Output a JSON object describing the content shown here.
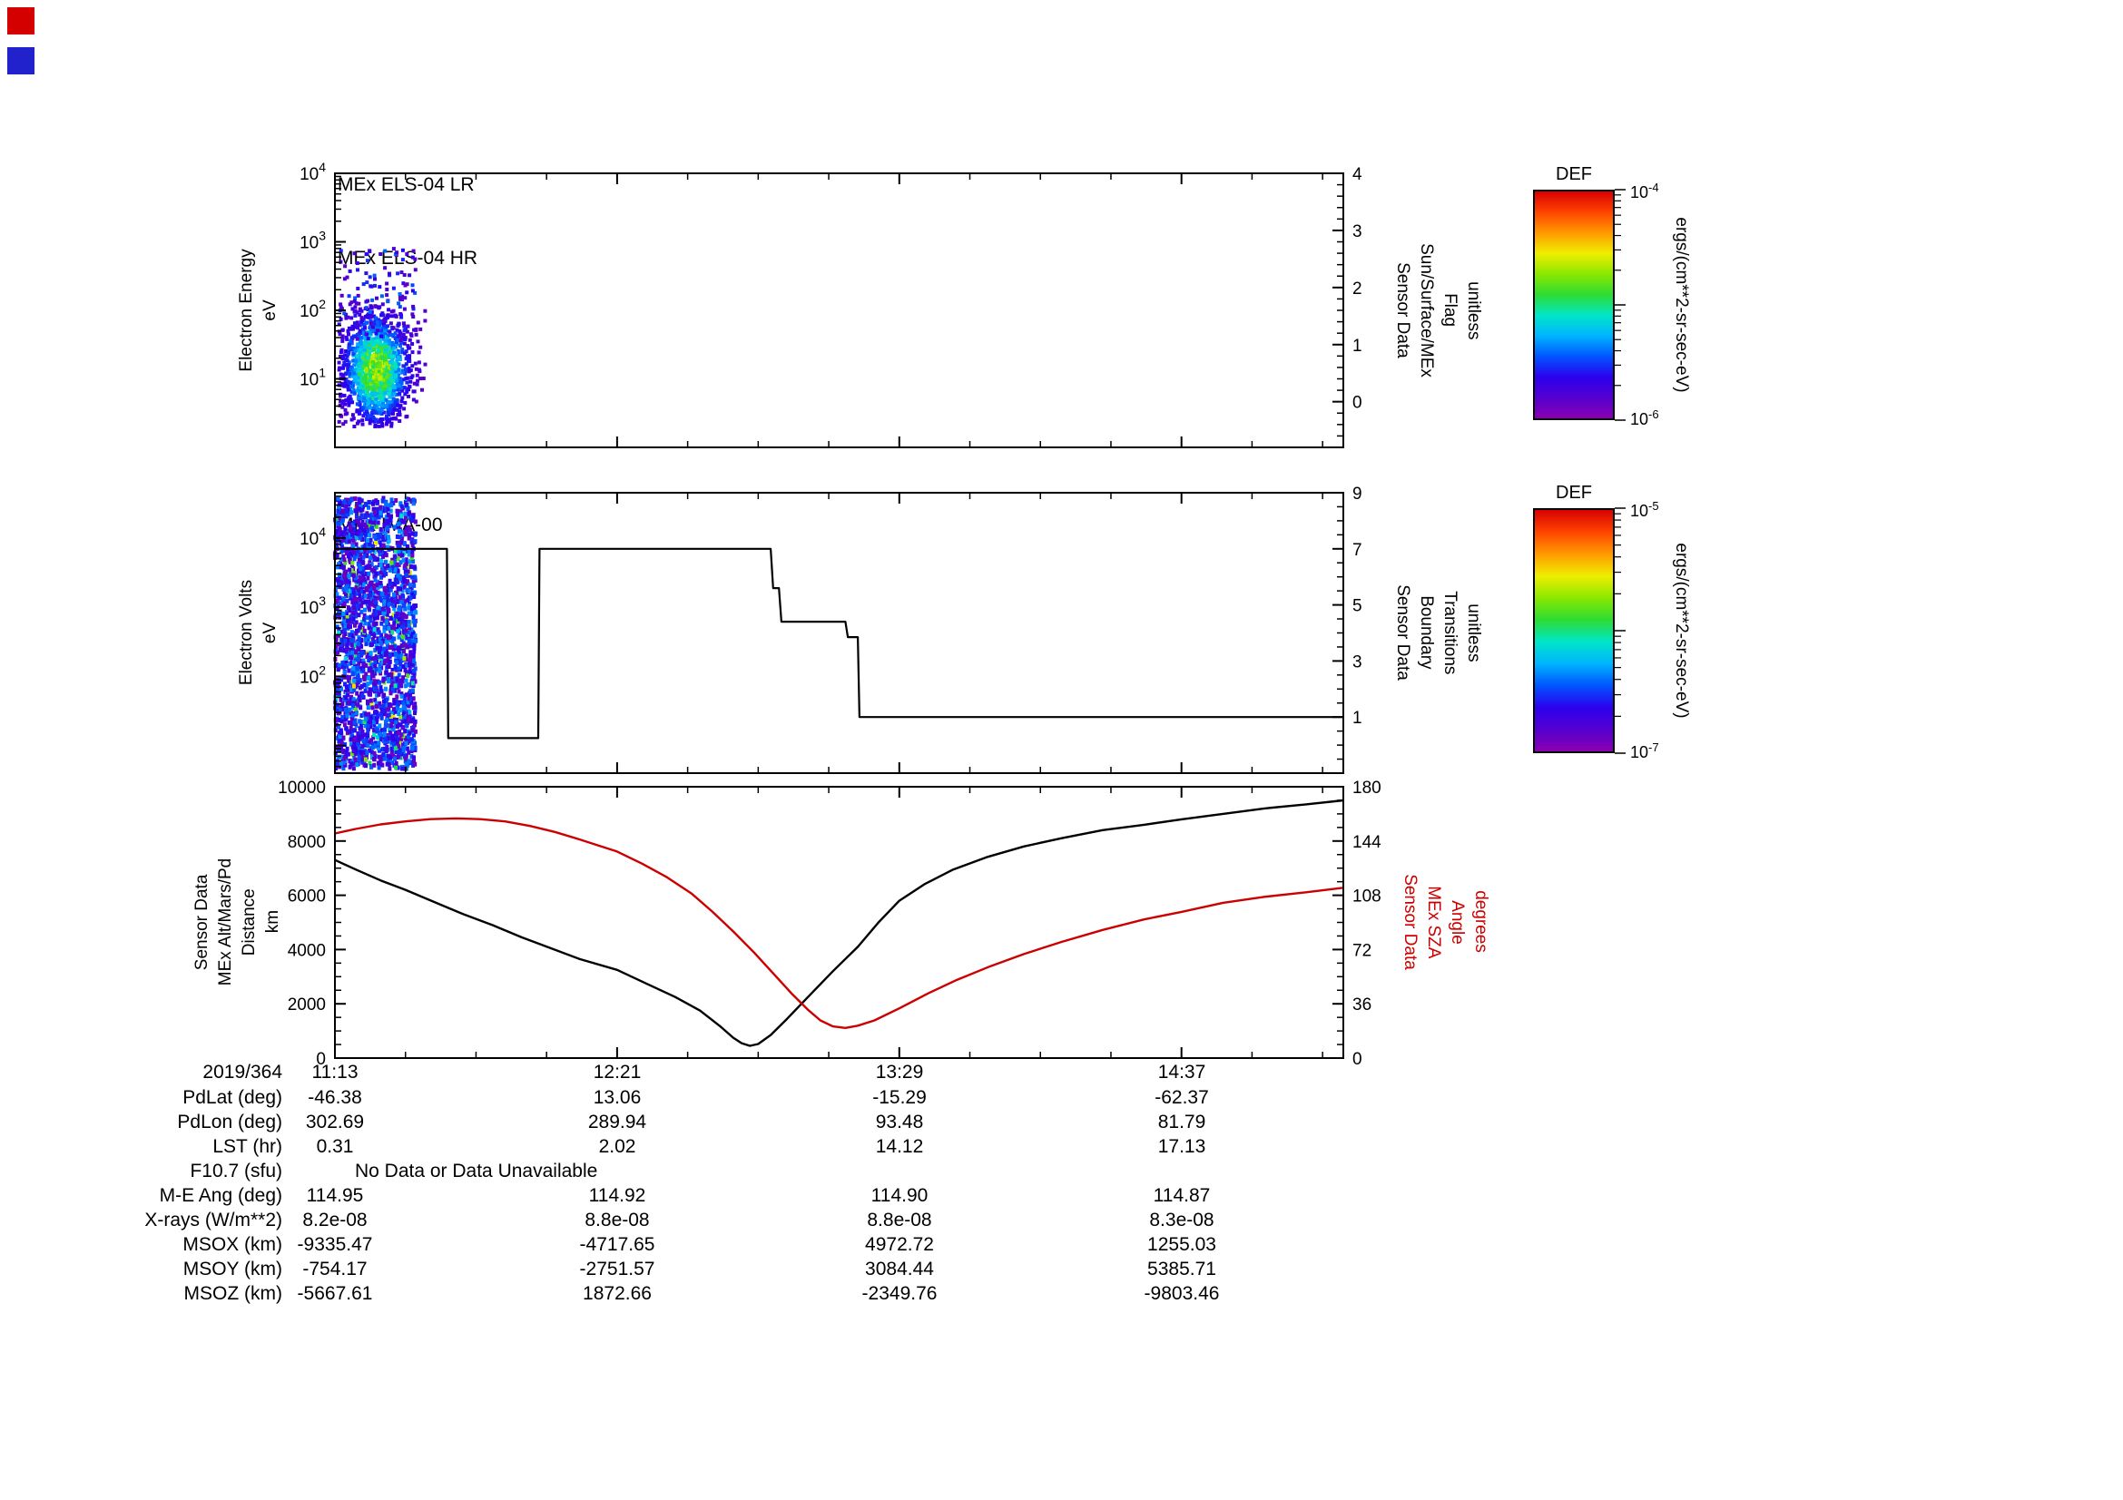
{
  "page": {
    "background": "#ffffff"
  },
  "corner_markers": [
    {
      "name": "red-marker",
      "color": "#d40000"
    },
    {
      "name": "blue-marker",
      "color": "#2222cc"
    }
  ],
  "rainbow_stops": [
    "#8a00b0",
    "#5500d0",
    "#2b00ee",
    "#0055ff",
    "#00b4ff",
    "#00e6c8",
    "#2edc32",
    "#8ce800",
    "#f0ee00",
    "#ff9900",
    "#ff4400",
    "#d80000"
  ],
  "colorbars": [
    {
      "title": "DEF",
      "top_base": "10",
      "top_exp": "-4",
      "bottom_base": "10",
      "bottom_exp": "-6",
      "decades": 2,
      "units": "ergs/(cm**2-sr-sec-eV)"
    },
    {
      "title": "DEF",
      "top_base": "10",
      "top_exp": "-5",
      "bottom_base": "10",
      "bottom_exp": "-7",
      "decades": 2,
      "units": "ergs/(cm**2-sr-sec-eV)"
    }
  ],
  "chart_data": [
    {
      "id": "els",
      "type": "heatmap",
      "titles": [
        "MEx ELS-04 LR",
        "MEx ELS-04 HR"
      ],
      "x_axis": {
        "date": "2019/364",
        "min_minutes": 673,
        "max_minutes": 916,
        "tick_minutes": [
          673,
          741,
          809,
          877
        ],
        "tick_labels": [
          "11:13",
          "12:21",
          "13:29",
          "14:37"
        ],
        "minor_step_minutes": 17
      },
      "y_axis": {
        "scale": "log",
        "min": 1,
        "max": 10000,
        "labeled_exps": [
          1,
          2,
          3,
          4
        ],
        "label_lines": [
          "Electron Energy",
          "eV"
        ]
      },
      "right_axis": {
        "min": -0.8,
        "max": 4,
        "ticks": [
          0,
          1,
          2,
          3,
          4
        ],
        "minor_step": 0.2,
        "label_lines": [
          "Sensor Data",
          "Sun/Surface/MEx",
          "Flag",
          "unitless"
        ]
      },
      "spectrogram": {
        "description": "Electron energy flux burst near start of interval (~11:14-11:35), energies ~2-500 eV, peak differential energy flux around 10-30 eV; no data for rest of interval",
        "t_center": 683,
        "t_sigma": 4.2,
        "t_min": 674,
        "t_max": 695.5,
        "logE_center": 1.15,
        "logE_sigma": 0.42,
        "logE_min": 0.3,
        "logE_max": 2.95,
        "count": 1500,
        "outliers": 130,
        "seed": 20190364
      }
    },
    {
      "id": "ima",
      "type": "heatmap+line",
      "titles": [
        "MEx IMA-00"
      ],
      "y_axis": {
        "scale": "log",
        "min": 4,
        "max": 45000,
        "labeled_exps": [
          2,
          3,
          4
        ],
        "label_lines": [
          "Electron Volts",
          "eV"
        ]
      },
      "right_axis": {
        "min": -1,
        "max": 9,
        "ticks": [
          1,
          3,
          5,
          7,
          9
        ],
        "minor_step": 0.5,
        "label_lines": [
          "Sensor Data",
          "Boundary",
          "Transitions",
          "unitless"
        ]
      },
      "noise": {
        "description": "IMA counts present only near start of interval (~11:13-11:32) across all energies, mostly low flux (blue/purple)",
        "t_min": 673,
        "t_max": 692.5,
        "count": 2400,
        "seed": 41
      },
      "step_line": {
        "name": "Boundary Transitions",
        "color": "#000000",
        "points": [
          [
            673,
            7
          ],
          [
            700,
            7
          ],
          [
            700.3,
            0.25
          ],
          [
            722,
            0.25
          ],
          [
            722.3,
            7
          ],
          [
            778,
            7
          ],
          [
            778.6,
            5.6
          ],
          [
            780,
            5.6
          ],
          [
            780.6,
            4.4
          ],
          [
            796,
            4.4
          ],
          [
            796.6,
            3.85
          ],
          [
            799,
            3.85
          ],
          [
            799.4,
            1
          ],
          [
            916,
            1
          ]
        ]
      }
    },
    {
      "id": "alt",
      "type": "line",
      "left_axis": {
        "min": 0,
        "max": 10000,
        "ticks": [
          0,
          2000,
          4000,
          6000,
          8000,
          10000
        ],
        "minor_step": 500,
        "label_lines": [
          "Sensor Data",
          "MEx Alt/Mars/Pd",
          "Distance",
          "km"
        ]
      },
      "right_axis": {
        "min": 0,
        "max": 180,
        "ticks": [
          0,
          36,
          72,
          108,
          144,
          180
        ],
        "minor_step": 9,
        "color": "#cc0000",
        "label_lines": [
          "Sensor Data",
          "MEx SZA",
          "Angle",
          "degrees"
        ]
      },
      "series": [
        {
          "name": "MEx Alt/Mars/Pd Distance",
          "axis": "left",
          "color": "#000000",
          "points": [
            [
              673,
              7300
            ],
            [
              678,
              6950
            ],
            [
              684,
              6550
            ],
            [
              690,
              6200
            ],
            [
              697,
              5750
            ],
            [
              704,
              5300
            ],
            [
              711,
              4900
            ],
            [
              718,
              4450
            ],
            [
              725,
              4050
            ],
            [
              732,
              3650
            ],
            [
              741,
              3250
            ],
            [
              748,
              2750
            ],
            [
              755,
              2250
            ],
            [
              761,
              1750
            ],
            [
              766,
              1150
            ],
            [
              769,
              750
            ],
            [
              771,
              550
            ],
            [
              773,
              450
            ],
            [
              775,
              520
            ],
            [
              778,
              850
            ],
            [
              782,
              1450
            ],
            [
              787,
              2250
            ],
            [
              793,
              3200
            ],
            [
              799,
              4100
            ],
            [
              804,
              5000
            ],
            [
              809,
              5800
            ],
            [
              815,
              6400
            ],
            [
              822,
              6950
            ],
            [
              830,
              7400
            ],
            [
              839,
              7800
            ],
            [
              848,
              8100
            ],
            [
              858,
              8400
            ],
            [
              868,
              8600
            ],
            [
              877,
              8800
            ],
            [
              887,
              9000
            ],
            [
              897,
              9200
            ],
            [
              907,
              9350
            ],
            [
              916,
              9500
            ]
          ]
        },
        {
          "name": "MEx SZA Angle",
          "axis": "right",
          "color": "#cc0000",
          "points": [
            [
              673,
              149
            ],
            [
              678,
              152
            ],
            [
              684,
              155
            ],
            [
              690,
              157
            ],
            [
              696,
              158.5
            ],
            [
              702,
              159
            ],
            [
              708,
              158.5
            ],
            [
              714,
              157
            ],
            [
              720,
              154
            ],
            [
              726,
              150
            ],
            [
              732,
              145
            ],
            [
              741,
              137
            ],
            [
              747,
              129
            ],
            [
              753,
              120
            ],
            [
              759,
              109
            ],
            [
              764,
              97
            ],
            [
              769,
              84
            ],
            [
              774,
              70
            ],
            [
              779,
              55
            ],
            [
              783,
              43
            ],
            [
              787,
              32
            ],
            [
              790,
              25
            ],
            [
              793,
              21
            ],
            [
              796,
              20
            ],
            [
              799,
              21.5
            ],
            [
              803,
              25
            ],
            [
              809,
              33
            ],
            [
              816,
              43
            ],
            [
              823,
              52
            ],
            [
              831,
              61
            ],
            [
              839,
              69
            ],
            [
              848,
              77
            ],
            [
              858,
              85
            ],
            [
              868,
              92
            ],
            [
              877,
              97
            ],
            [
              887,
              103
            ],
            [
              897,
              107
            ],
            [
              907,
              110
            ],
            [
              916,
              113
            ]
          ]
        }
      ]
    }
  ],
  "footer": {
    "date": "2019/364",
    "time_ticks": [
      "11:13",
      "12:21",
      "13:29",
      "14:37"
    ],
    "rows": [
      {
        "label": "PdLat (deg)",
        "values": [
          "-46.38",
          "13.06",
          "-15.29",
          "-62.37"
        ]
      },
      {
        "label": "PdLon (deg)",
        "values": [
          "302.69",
          "289.94",
          "93.48",
          "81.79"
        ]
      },
      {
        "label": "LST (hr)",
        "values": [
          "0.31",
          "2.02",
          "14.12",
          "17.13"
        ]
      },
      {
        "label": "F10.7 (sfu)",
        "values": [
          "No Data or Data Unavailable"
        ]
      },
      {
        "label": "M-E Ang (deg)",
        "values": [
          "114.95",
          "114.92",
          "114.90",
          "114.87"
        ]
      },
      {
        "label": "X-rays (W/m**2)",
        "values": [
          "8.2e-08",
          "8.8e-08",
          "8.8e-08",
          "8.3e-08"
        ]
      },
      {
        "label": "MSOX (km)",
        "values": [
          "-9335.47",
          "-4717.65",
          "4972.72",
          "1255.03"
        ]
      },
      {
        "label": "MSOY (km)",
        "values": [
          "-754.17",
          "-2751.57",
          "3084.44",
          "5385.71"
        ]
      },
      {
        "label": "MSOZ (km)",
        "values": [
          "-5667.61",
          "1872.66",
          "-2349.76",
          "-9803.46"
        ]
      }
    ]
  }
}
